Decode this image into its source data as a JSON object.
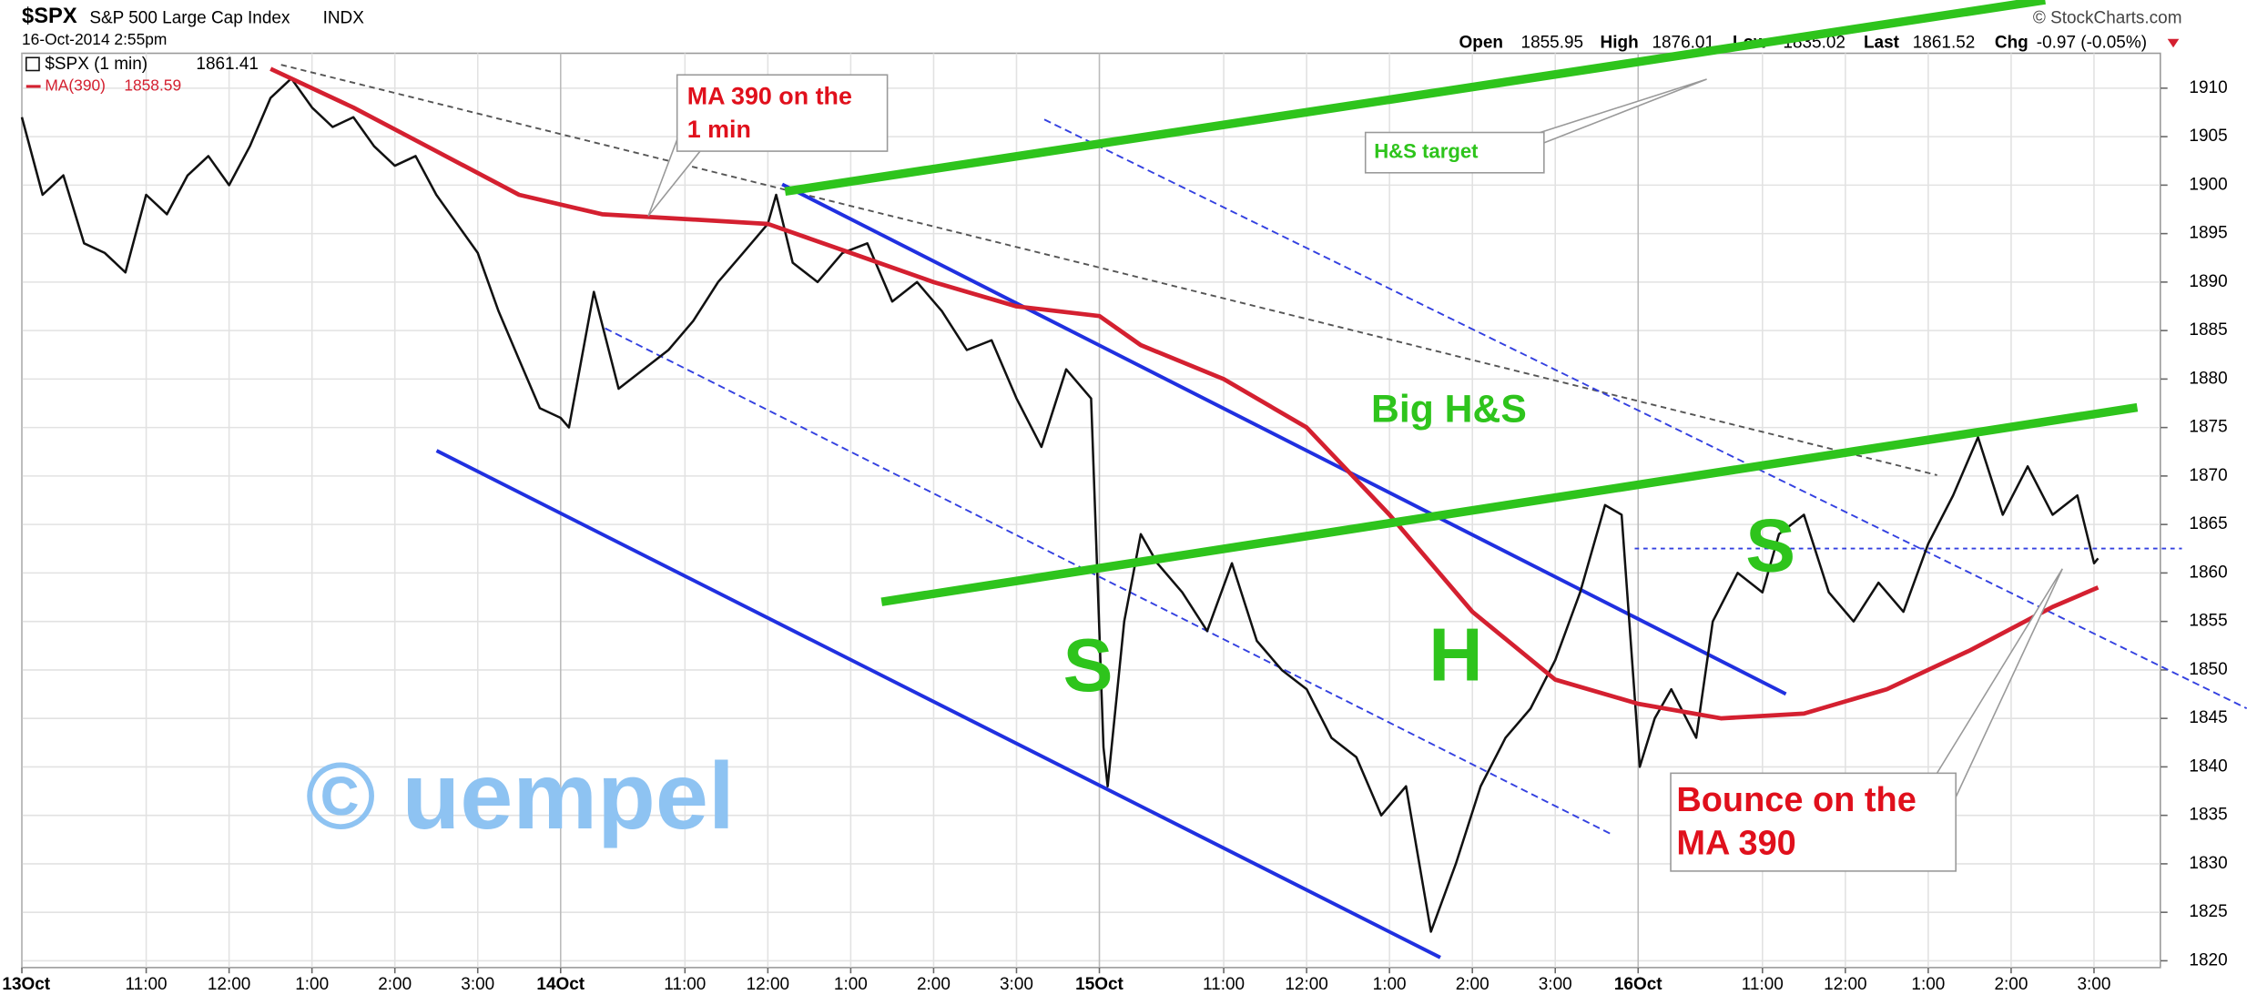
{
  "chart_data": {
    "type": "line",
    "header": {
      "symbol": "$SPX",
      "name": "S&P 500 Large Cap Index",
      "exchange": "INDX",
      "date": "16-Oct-2014 2:55pm",
      "source": "© StockCharts.com"
    },
    "quote": {
      "open_label": "Open",
      "open": 1855.95,
      "high_label": "High",
      "high": 1876.01,
      "low_label": "Low",
      "low": 1835.02,
      "last_label": "Last",
      "last": 1861.52,
      "chg_label": "Chg",
      "chg": "-0.97 (-0.05%)"
    },
    "annotations": [
      "MA 390 on the",
      "1 min",
      "H&S target",
      "Big H&S",
      "S",
      "H",
      "S",
      "Bounce on the",
      "MA 390",
      "© uempel"
    ],
    "xlim": [
      0,
      25.8
    ],
    "ylim": [
      1819.3,
      1913.6
    ],
    "grid": true,
    "yticks": [
      1820,
      1825,
      1830,
      1835,
      1840,
      1845,
      1850,
      1855,
      1860,
      1865,
      1870,
      1875,
      1880,
      1885,
      1890,
      1895,
      1900,
      1905,
      1910
    ],
    "xticks": [
      {
        "value": 0,
        "label": "13Oct"
      },
      {
        "value": 1.5,
        "label": "11:00"
      },
      {
        "value": 2.5,
        "label": "12:00"
      },
      {
        "value": 3.5,
        "label": "1:00"
      },
      {
        "value": 4.5,
        "label": "2:00"
      },
      {
        "value": 5.5,
        "label": "3:00"
      },
      {
        "value": 6.5,
        "label": "14Oct"
      },
      {
        "value": 8,
        "label": "11:00"
      },
      {
        "value": 9,
        "label": "12:00"
      },
      {
        "value": 10,
        "label": "1:00"
      },
      {
        "value": 11,
        "label": "2:00"
      },
      {
        "value": 12,
        "label": "3:00"
      },
      {
        "value": 13,
        "label": "15Oct"
      },
      {
        "value": 14.5,
        "label": "11:00"
      },
      {
        "value": 15.5,
        "label": "12:00"
      },
      {
        "value": 16.5,
        "label": "1:00"
      },
      {
        "value": 17.5,
        "label": "2:00"
      },
      {
        "value": 18.5,
        "label": "3:00"
      },
      {
        "value": 19.5,
        "label": "16Oct"
      },
      {
        "value": 21,
        "label": "11:00"
      },
      {
        "value": 22,
        "label": "12:00"
      },
      {
        "value": 23,
        "label": "1:00"
      },
      {
        "value": 24,
        "label": "2:00"
      },
      {
        "value": 25,
        "label": "3:00"
      }
    ],
    "series": [
      {
        "name": "$SPX (1 min)",
        "last_value": 1861.41,
        "color": "#111111",
        "x": [
          0,
          0.25,
          0.5,
          0.75,
          1.0,
          1.25,
          1.5,
          1.75,
          2.0,
          2.25,
          2.5,
          2.75,
          3.0,
          3.25,
          3.5,
          3.75,
          4.0,
          4.25,
          4.5,
          4.75,
          5.0,
          5.25,
          5.5,
          5.75,
          6.0,
          6.25,
          6.5,
          6.6,
          6.9,
          7.2,
          7.5,
          7.8,
          8.1,
          8.4,
          8.7,
          9.0,
          9.1,
          9.3,
          9.6,
          9.9,
          10.2,
          10.5,
          10.8,
          11.1,
          11.4,
          11.7,
          12.0,
          12.3,
          12.6,
          12.9,
          13.05,
          13.1,
          13.3,
          13.5,
          13.7,
          14.0,
          14.3,
          14.6,
          14.9,
          15.2,
          15.5,
          15.8,
          16.1,
          16.4,
          16.7,
          17.0,
          17.3,
          17.6,
          17.9,
          18.2,
          18.5,
          18.8,
          19.1,
          19.3,
          19.52,
          19.7,
          19.9,
          20.2,
          20.4,
          20.7,
          21.0,
          21.2,
          21.5,
          21.8,
          22.1,
          22.4,
          22.7,
          23.0,
          23.3,
          23.6,
          23.9,
          24.2,
          24.5,
          24.8,
          25.0,
          25.05
        ],
        "values": [
          1907,
          1899,
          1901,
          1894,
          1893,
          1891,
          1899,
          1897,
          1901,
          1903,
          1900,
          1904,
          1909,
          1911,
          1908,
          1906,
          1907,
          1904,
          1902,
          1903,
          1899,
          1896,
          1893,
          1887,
          1882,
          1877,
          1876,
          1875,
          1889,
          1879,
          1881,
          1883,
          1886,
          1890,
          1893,
          1896,
          1899,
          1892,
          1890,
          1893,
          1894,
          1888,
          1890,
          1887,
          1883,
          1884,
          1878,
          1873,
          1881,
          1878,
          1842,
          1838,
          1855,
          1864,
          1861,
          1858,
          1854,
          1861,
          1853,
          1850,
          1848,
          1843,
          1841,
          1835,
          1838,
          1823,
          1830,
          1838,
          1843,
          1846,
          1851,
          1858,
          1867,
          1866,
          1840,
          1845,
          1848,
          1843,
          1855,
          1860,
          1858,
          1864,
          1866,
          1858,
          1855,
          1859,
          1856,
          1863,
          1868,
          1874,
          1866,
          1871,
          1866,
          1868,
          1861,
          1861.5
        ]
      },
      {
        "name": "MA(390)",
        "last_value": 1858.59,
        "color": "#d42030",
        "x": [
          3.0,
          4.0,
          5.0,
          6.0,
          7.0,
          8.0,
          9.0,
          10.0,
          11.0,
          12.0,
          13.0,
          13.5,
          14.5,
          15.5,
          16.5,
          17.5,
          18.5,
          19.5,
          20.5,
          21.5,
          22.5,
          23.5,
          24.5,
          25.05
        ],
        "values": [
          1912,
          1908,
          1903.5,
          1899,
          1897,
          1896.5,
          1896,
          1893,
          1890,
          1887.5,
          1886.5,
          1883.5,
          1880,
          1875,
          1866,
          1856,
          1849,
          1846.5,
          1845,
          1845.5,
          1848,
          1852,
          1856.5,
          1858.5
        ]
      }
    ]
  }
}
